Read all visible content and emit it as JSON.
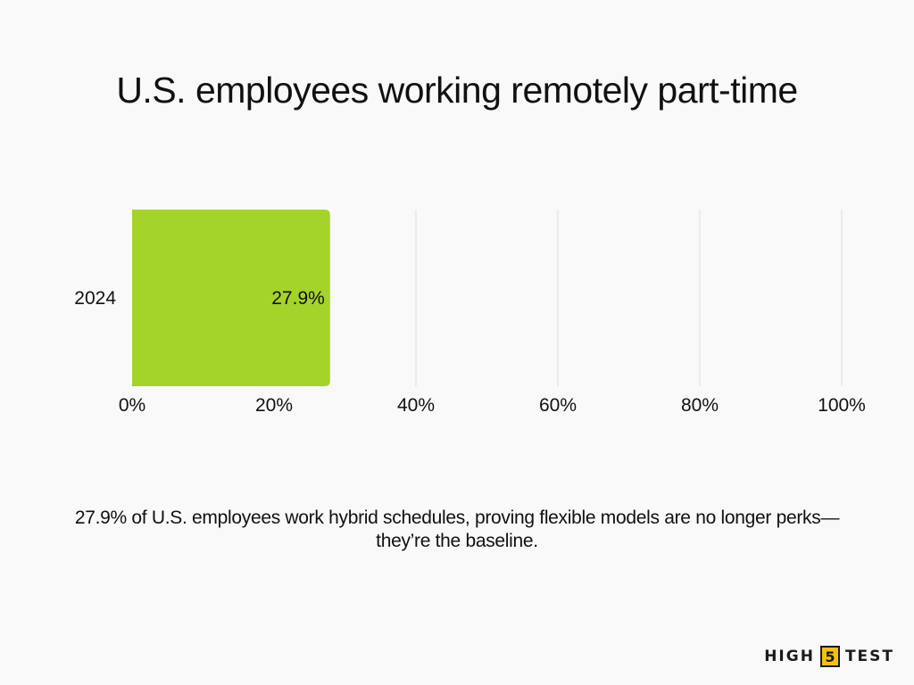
{
  "chart_data": {
    "type": "bar",
    "orientation": "horizontal",
    "title": "U.S. employees working remotely part-time",
    "categories": [
      "2024"
    ],
    "values": [
      27.9
    ],
    "data_labels": [
      "27.9%"
    ],
    "xlim": [
      0,
      100
    ],
    "x_ticks": [
      "0%",
      "20%",
      "40%",
      "60%",
      "80%",
      "100%"
    ],
    "grid": true,
    "bar_color": "#a4d32a",
    "grid_color": "#dddddd"
  },
  "caption": "27.9% of U.S. employees work hybrid schedules, proving flexible models are no longer perks—they’re the baseline.",
  "brand": {
    "left": "HIGH",
    "number": "5",
    "right": "TEST",
    "accent_color": "#f2c20f"
  }
}
